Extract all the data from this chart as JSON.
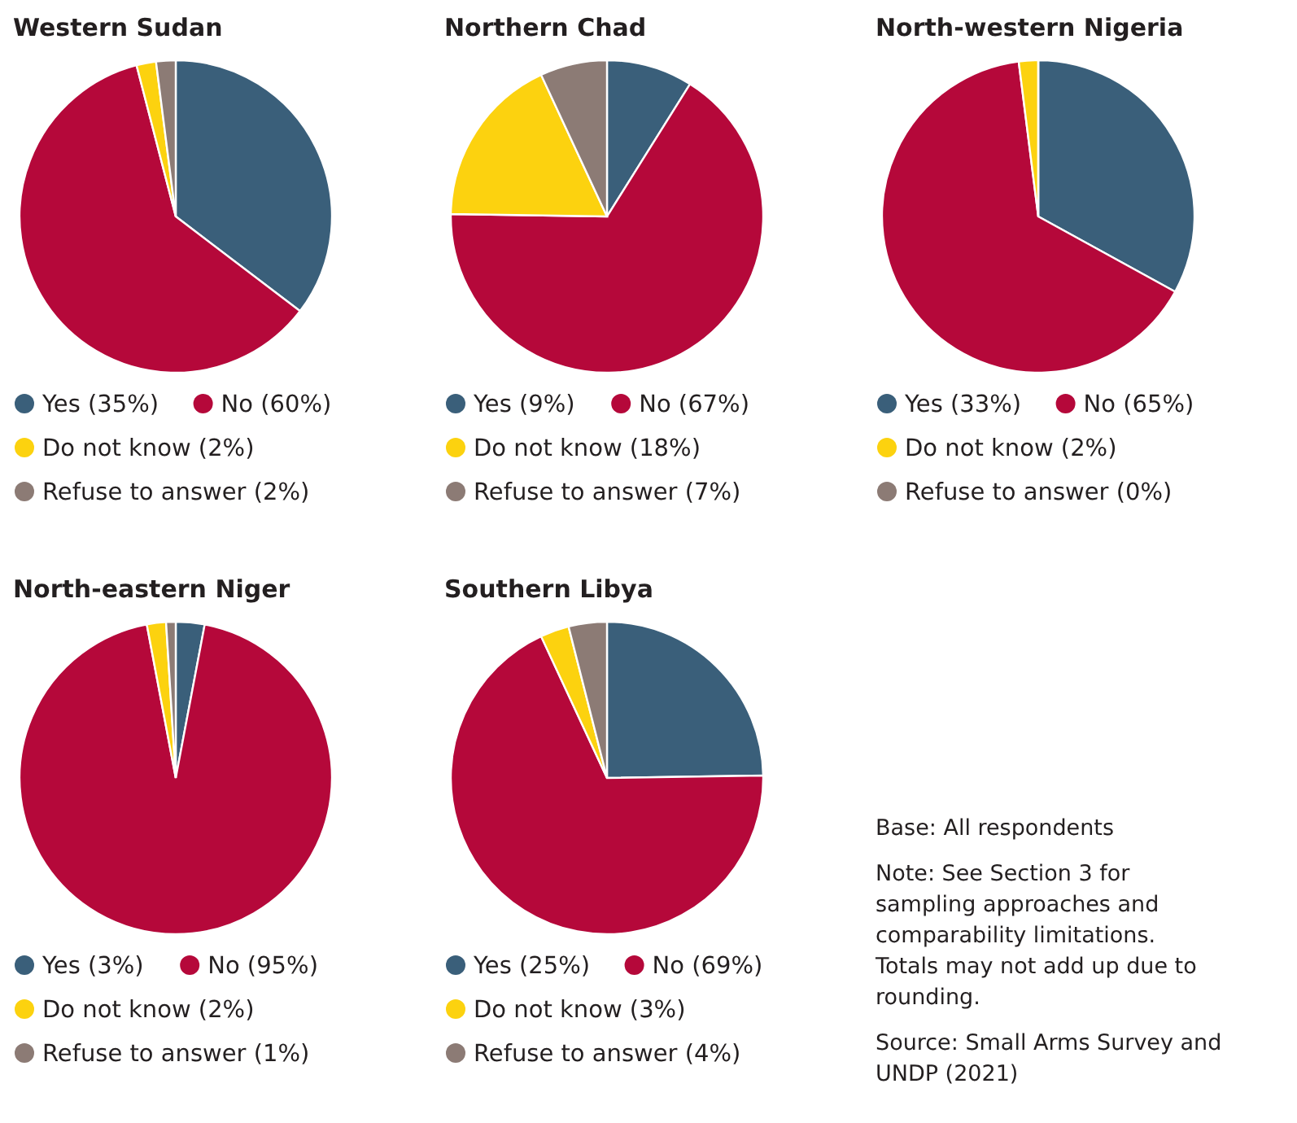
{
  "chart_data": [
    {
      "type": "pie",
      "title": "Western Sudan",
      "categories": [
        "Yes (35%)",
        "No (60%)",
        "Do not know (2%)",
        "Refuse to answer (2%)"
      ],
      "values": [
        35,
        60,
        2,
        2
      ],
      "colors": [
        "#3a5f7a",
        "#b5083a",
        "#fcd20f",
        "#8c7b75"
      ],
      "legend": "bottom"
    },
    {
      "type": "pie",
      "title": "Northern Chad",
      "categories": [
        "Yes (9%)",
        "No (67%)",
        "Do not know (18%)",
        "Refuse to answer (7%)"
      ],
      "values": [
        9,
        67,
        18,
        7
      ],
      "colors": [
        "#3a5f7a",
        "#b5083a",
        "#fcd20f",
        "#8c7b75"
      ],
      "legend": "bottom"
    },
    {
      "type": "pie",
      "title": "North-western Nigeria",
      "categories": [
        "Yes (33%)",
        "No (65%)",
        "Do not know (2%)",
        "Refuse to answer (0%)"
      ],
      "values": [
        33,
        65,
        2,
        0
      ],
      "colors": [
        "#3a5f7a",
        "#b5083a",
        "#fcd20f",
        "#8c7b75"
      ],
      "legend": "bottom"
    },
    {
      "type": "pie",
      "title": "North-eastern Niger",
      "categories": [
        "Yes (3%)",
        "No (95%)",
        "Do not know (2%)",
        "Refuse to answer (1%)"
      ],
      "values": [
        3,
        95,
        2,
        1
      ],
      "colors": [
        "#3a5f7a",
        "#b5083a",
        "#fcd20f",
        "#8c7b75"
      ],
      "legend": "bottom"
    },
    {
      "type": "pie",
      "title": "Southern Libya",
      "categories": [
        "Yes (25%)",
        "No (69%)",
        "Do not know (3%)",
        "Refuse to answer (4%)"
      ],
      "values": [
        25,
        69,
        3,
        4
      ],
      "colors": [
        "#3a5f7a",
        "#b5083a",
        "#fcd20f",
        "#8c7b75"
      ],
      "legend": "bottom"
    },
    {
      "type": "other",
      "annotations": [
        "Base: All respondents",
        "Note: See Section 3 for sampling approaches and comparability limitations. Totals may not add up due to rounding.",
        "Source: Small Arms Survey and UNDP (2021)"
      ]
    }
  ]
}
